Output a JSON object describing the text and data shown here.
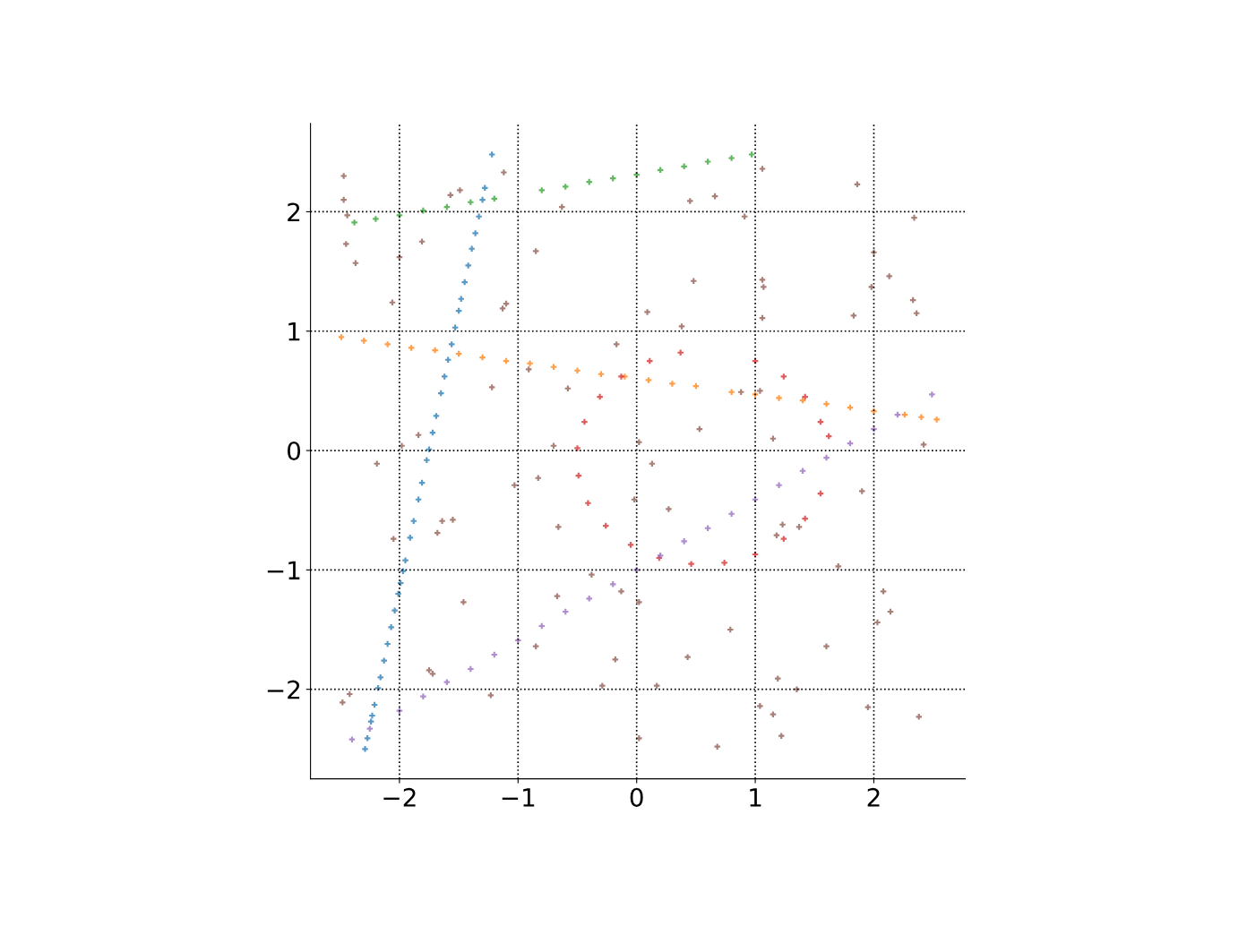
{
  "chart_data": {
    "type": "scatter",
    "xlim": [
      -2.75,
      2.77
    ],
    "ylim": [
      -2.75,
      2.74
    ],
    "xticks": [
      -2,
      -1,
      0,
      1,
      2
    ],
    "yticks": [
      -2,
      -1,
      0,
      1,
      2
    ],
    "grid": true,
    "marker": "cross",
    "legend": false,
    "series": [
      {
        "color": "#1f77b4",
        "x": [
          -2.29,
          -2.27,
          -2.24,
          -2.23,
          -2.21,
          -2.18,
          -2.16,
          -2.13,
          -2.1,
          -2.07,
          -2.04,
          -2.01,
          -1.99,
          -1.97,
          -1.95,
          -1.91,
          -1.88,
          -1.84,
          -1.81,
          -1.77,
          -1.75,
          -1.72,
          -1.69,
          -1.65,
          -1.62,
          -1.59,
          -1.56,
          -1.53,
          -1.5,
          -1.48,
          -1.45,
          -1.42,
          -1.39,
          -1.36,
          -1.33,
          -1.3,
          -1.28,
          -1.22
        ],
        "values": [
          -2.5,
          -2.41,
          -2.27,
          -2.22,
          -2.13,
          -1.99,
          -1.9,
          -1.76,
          -1.62,
          -1.48,
          -1.34,
          -1.2,
          -1.11,
          -1.01,
          -0.92,
          -0.73,
          -0.59,
          -0.41,
          -0.27,
          -0.08,
          0.01,
          0.15,
          0.29,
          0.48,
          0.62,
          0.76,
          0.89,
          1.03,
          1.17,
          1.27,
          1.41,
          1.55,
          1.69,
          1.82,
          1.96,
          2.1,
          2.2,
          2.48
        ]
      },
      {
        "color": "#ff7f0e",
        "x": [
          -2.49,
          -2.3,
          -2.1,
          -1.9,
          -1.7,
          -1.5,
          -1.3,
          -1.1,
          -0.9,
          -0.7,
          -0.5,
          -0.3,
          -0.1,
          0.1,
          0.3,
          0.5,
          0.8,
          1.0,
          1.2,
          1.4,
          1.6,
          1.8,
          2.0,
          2.26,
          2.4,
          2.53
        ],
        "values": [
          0.95,
          0.92,
          0.89,
          0.86,
          0.84,
          0.81,
          0.78,
          0.75,
          0.73,
          0.7,
          0.67,
          0.64,
          0.62,
          0.59,
          0.56,
          0.54,
          0.49,
          0.47,
          0.44,
          0.42,
          0.39,
          0.36,
          0.33,
          0.3,
          0.28,
          0.26
        ]
      },
      {
        "color": "#2ca02c",
        "x": [
          -2.38,
          -2.2,
          -2.0,
          -1.8,
          -1.6,
          -1.4,
          -1.2,
          -0.8,
          -0.6,
          -0.4,
          -0.2,
          0.0,
          0.2,
          0.4,
          0.6,
          0.8,
          0.97
        ],
        "values": [
          1.91,
          1.94,
          1.97,
          2.01,
          2.04,
          2.08,
          2.11,
          2.18,
          2.21,
          2.25,
          2.28,
          2.31,
          2.35,
          2.38,
          2.42,
          2.45,
          2.48
        ]
      },
      {
        "color": "#d62728",
        "x": [
          1.62,
          1.55,
          1.42,
          1.24,
          1.0,
          0.37,
          0.11,
          -0.13,
          -0.31,
          -0.44,
          -0.5,
          -0.49,
          -0.41,
          -0.26,
          -0.05,
          0.19,
          0.46,
          0.74,
          1.0,
          1.24,
          1.42,
          1.55
        ],
        "values": [
          0.12,
          0.24,
          0.45,
          0.62,
          0.75,
          0.82,
          0.75,
          0.62,
          0.45,
          0.24,
          0.02,
          -0.21,
          -0.44,
          -0.63,
          -0.79,
          -0.9,
          -0.95,
          -0.94,
          -0.87,
          -0.74,
          -0.57,
          -0.36
        ]
      },
      {
        "color": "#9467bd",
        "x": [
          -2.4,
          -2.25,
          -2.0,
          -1.8,
          -1.6,
          -1.4,
          -1.2,
          -1.0,
          -0.8,
          -0.6,
          -0.4,
          -0.2,
          0.0,
          0.2,
          0.4,
          0.6,
          0.8,
          1.0,
          1.2,
          1.4,
          1.6,
          1.8,
          2.0,
          2.2,
          2.49
        ],
        "values": [
          -2.42,
          -2.33,
          -2.18,
          -2.06,
          -1.94,
          -1.83,
          -1.71,
          -1.59,
          -1.47,
          -1.35,
          -1.24,
          -1.12,
          -1.0,
          -0.88,
          -0.76,
          -0.65,
          -0.53,
          -0.41,
          -0.29,
          -0.17,
          -0.06,
          0.06,
          0.18,
          0.3,
          0.47
        ]
      },
      {
        "color": "#8c564b",
        "x": [
          -2.47,
          -2.47,
          -2.44,
          -2.45,
          -2.37,
          -2.0,
          -1.81,
          -2.06,
          -1.12,
          -0.85,
          -0.63,
          -1.1,
          -1.13,
          -1.57,
          -1.49,
          -0.17,
          0.09,
          0.38,
          0.48,
          0.45,
          0.66,
          0.91,
          1.06,
          1.06,
          1.07,
          1.06,
          1.86,
          2.0,
          1.98,
          2.13,
          2.34,
          2.33,
          2.36,
          1.83,
          2.42,
          1.9,
          1.7,
          2.08,
          2.14,
          2.03,
          1.6,
          1.95,
          2.38,
          1.35,
          1.19,
          1.04,
          1.15,
          1.22,
          0.68,
          0.02,
          0.17,
          -0.18,
          -0.29,
          0.43,
          0.79,
          0.02,
          -0.13,
          -0.38,
          -0.67,
          -0.85,
          -0.66,
          -0.02,
          0.27,
          0.13,
          0.02,
          -0.7,
          -0.83,
          -1.03,
          -0.58,
          -1.22,
          -0.91,
          0.53,
          1.15,
          1.04,
          0.88,
          1.23,
          1.37,
          1.18,
          -1.84,
          -1.98,
          -2.19,
          -1.64,
          -1.55,
          -1.68,
          -2.05,
          -1.46,
          -1.75,
          -1.72,
          -1.23,
          -2.42,
          -2.48
        ],
        "values": [
          2.3,
          2.1,
          1.97,
          1.73,
          1.57,
          1.62,
          1.75,
          1.24,
          2.33,
          1.67,
          2.04,
          1.23,
          1.19,
          2.14,
          2.18,
          0.89,
          1.16,
          1.04,
          1.42,
          2.09,
          2.13,
          1.96,
          2.36,
          1.43,
          1.37,
          1.11,
          2.23,
          1.66,
          1.37,
          1.46,
          1.95,
          1.26,
          1.15,
          1.13,
          0.05,
          -0.34,
          -0.97,
          -1.18,
          -1.35,
          -1.44,
          -1.64,
          -2.15,
          -2.23,
          -2.0,
          -1.91,
          -2.14,
          -2.21,
          -2.39,
          -2.48,
          -2.41,
          -1.97,
          -1.75,
          -1.97,
          -1.73,
          -1.5,
          -1.27,
          -1.18,
          -1.04,
          -1.22,
          -1.64,
          -0.64,
          -0.41,
          -0.49,
          -0.11,
          0.07,
          0.04,
          -0.23,
          -0.29,
          0.52,
          0.53,
          0.68,
          0.18,
          0.1,
          0.5,
          0.49,
          -0.62,
          -0.64,
          -0.71,
          0.13,
          0.04,
          -0.11,
          -0.59,
          -0.58,
          -0.69,
          -0.74,
          -1.27,
          -1.84,
          -1.87,
          -2.05,
          -2.04,
          -2.11
        ]
      }
    ]
  }
}
